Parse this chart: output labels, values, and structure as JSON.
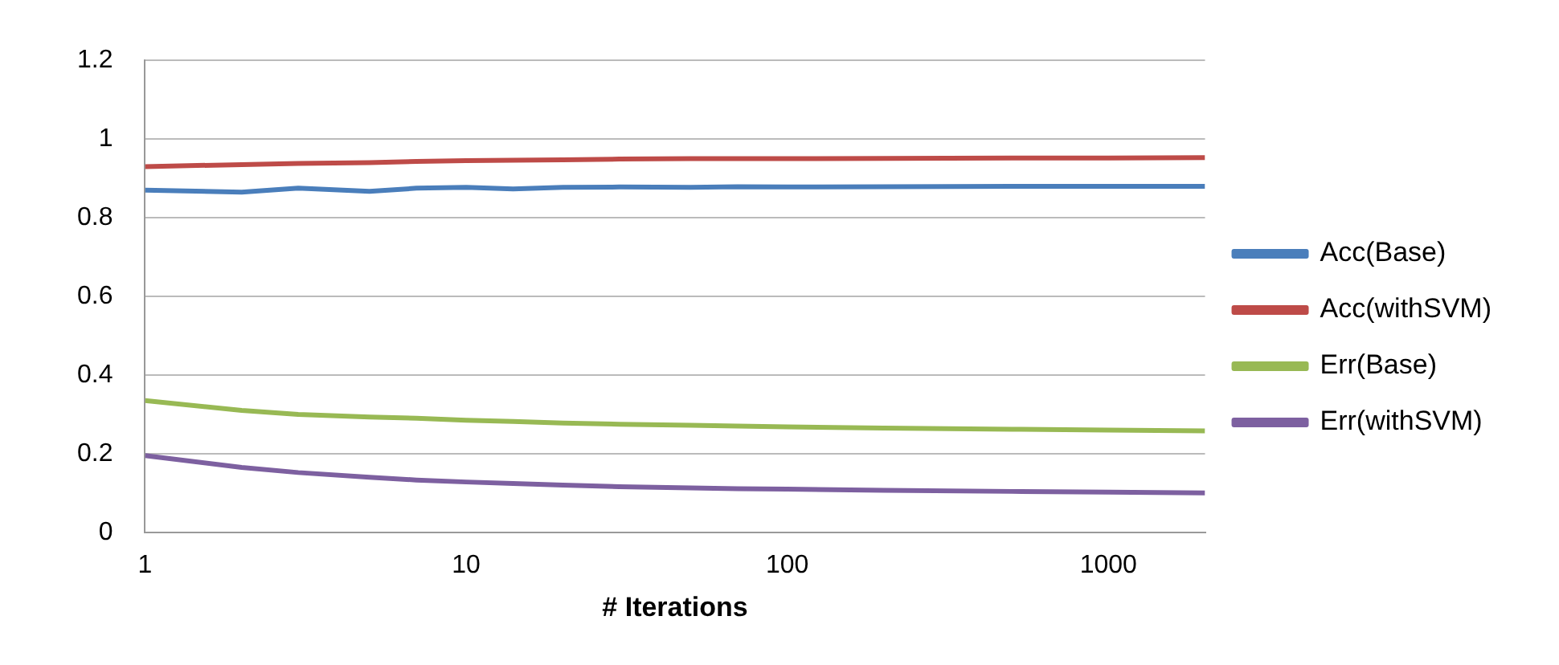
{
  "chart_data": {
    "type": "line",
    "xlabel": "# Iterations",
    "log": "x",
    "x": [
      1,
      2,
      3,
      5,
      7,
      10,
      14,
      20,
      30,
      50,
      70,
      100,
      200,
      500,
      1000,
      2000
    ],
    "xlim": [
      1,
      2000
    ],
    "xticks": [
      1,
      10,
      100,
      1000
    ],
    "ylim": [
      0,
      1.2
    ],
    "yticks": [
      0,
      0.2,
      0.4,
      0.6,
      0.8,
      1,
      1.2
    ],
    "grid": "y",
    "legend": "right",
    "marker": "none",
    "line_style": "solid",
    "series": [
      {
        "name": "Acc(Base)",
        "color": "#4a7ebb",
        "values": [
          0.87,
          0.865,
          0.875,
          0.867,
          0.875,
          0.877,
          0.873,
          0.877,
          0.878,
          0.877,
          0.879,
          0.878,
          0.879,
          0.88,
          0.88,
          0.88
        ]
      },
      {
        "name": "Acc(withSVM)",
        "color": "#be4b48",
        "values": [
          0.93,
          0.935,
          0.938,
          0.94,
          0.943,
          0.945,
          0.946,
          0.947,
          0.949,
          0.95,
          0.95,
          0.95,
          0.951,
          0.952,
          0.952,
          0.953
        ]
      },
      {
        "name": "Err(Base)",
        "color": "#98b954",
        "values": [
          0.335,
          0.31,
          0.3,
          0.293,
          0.29,
          0.285,
          0.282,
          0.278,
          0.275,
          0.272,
          0.27,
          0.268,
          0.265,
          0.262,
          0.26,
          0.258
        ]
      },
      {
        "name": "Err(withSVM)",
        "color": "#7d60a0",
        "values": [
          0.195,
          0.165,
          0.152,
          0.14,
          0.133,
          0.128,
          0.124,
          0.12,
          0.116,
          0.113,
          0.111,
          0.11,
          0.107,
          0.104,
          0.102,
          0.1
        ]
      }
    ]
  }
}
